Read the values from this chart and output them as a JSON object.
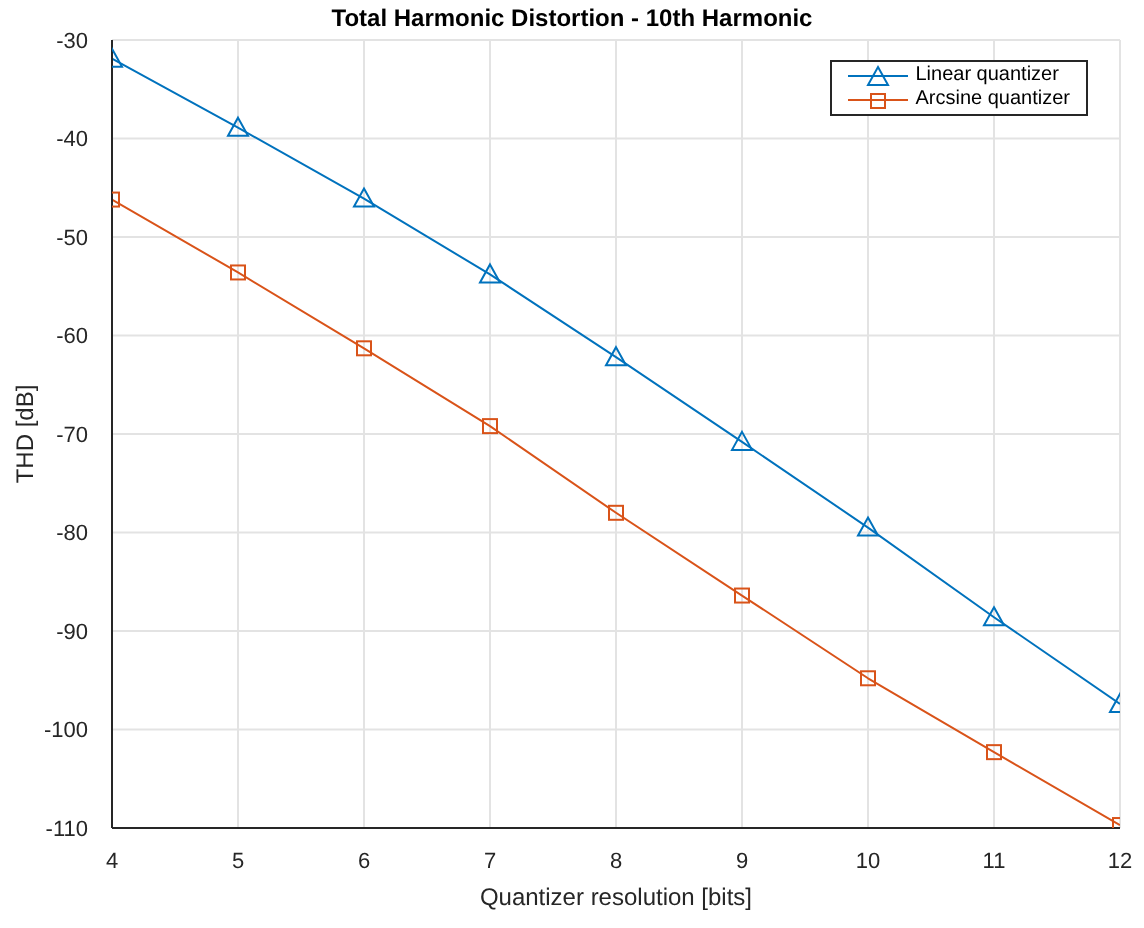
{
  "chart_data": {
    "type": "line",
    "title": "Total Harmonic Distortion - 10th Harmonic",
    "xlabel": "Quantizer resolution [bits]",
    "ylabel": "THD [dB]",
    "x": [
      4,
      5,
      6,
      7,
      8,
      9,
      10,
      11,
      12
    ],
    "series": [
      {
        "name": "Linear quantizer",
        "color": "#0072bd",
        "marker": "triangle",
        "values": [
          -31.9,
          -38.9,
          -46.1,
          -53.8,
          -62.2,
          -70.8,
          -79.5,
          -88.6,
          -97.4
        ]
      },
      {
        "name": "Arcsine quantizer",
        "color": "#d95319",
        "marker": "square",
        "values": [
          -46.2,
          -53.6,
          -61.3,
          -69.2,
          -78.0,
          -86.4,
          -94.8,
          -102.3,
          -109.7
        ]
      }
    ],
    "xlim": [
      4,
      12
    ],
    "xticks": [
      4,
      5,
      6,
      7,
      8,
      9,
      10,
      11,
      12
    ],
    "ylim": [
      -110,
      -30
    ],
    "yticks": [
      -110,
      -100,
      -90,
      -80,
      -70,
      -60,
      -50,
      -40,
      -30
    ],
    "grid": true,
    "legend": "top right",
    "line_style": "solid"
  }
}
